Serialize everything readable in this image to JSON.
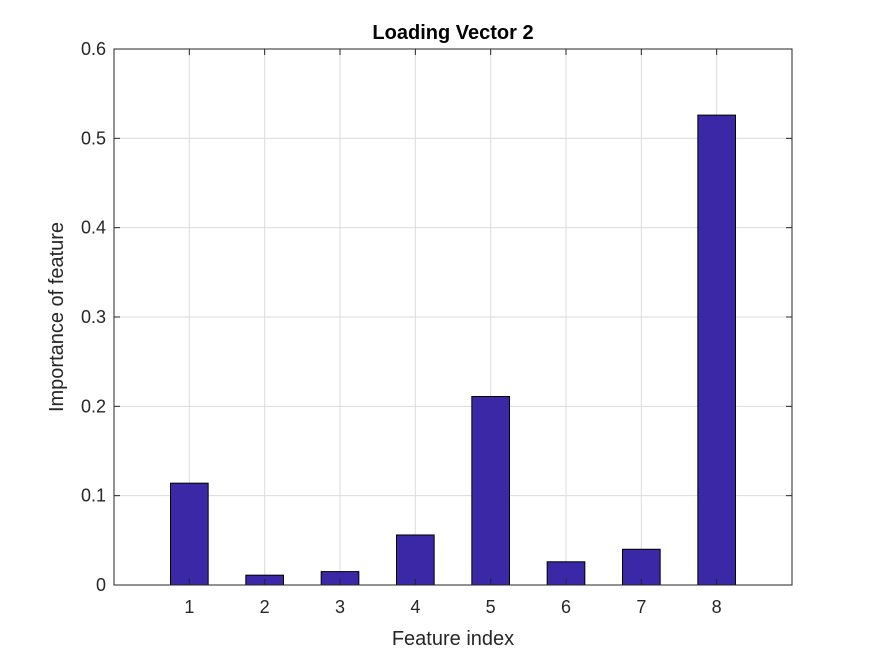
{
  "chart_data": {
    "type": "bar",
    "title": "Loading Vector 2",
    "xlabel": "Feature index",
    "ylabel": "Importance of feature",
    "categories": [
      "1",
      "2",
      "3",
      "4",
      "5",
      "6",
      "7",
      "8"
    ],
    "values": [
      0.114,
      0.011,
      0.015,
      0.056,
      0.211,
      0.026,
      0.04,
      0.526
    ],
    "xlim": [
      0,
      9
    ],
    "ylim": [
      0,
      0.6
    ],
    "yticks": [
      0,
      0.1,
      0.2,
      0.3,
      0.4,
      0.5,
      0.6
    ],
    "ytick_labels": [
      "0",
      "0.1",
      "0.2",
      "0.3",
      "0.4",
      "0.5",
      "0.6"
    ],
    "grid": true,
    "bar_color": "#3a28a6",
    "bar_edge_color": "#000000"
  }
}
